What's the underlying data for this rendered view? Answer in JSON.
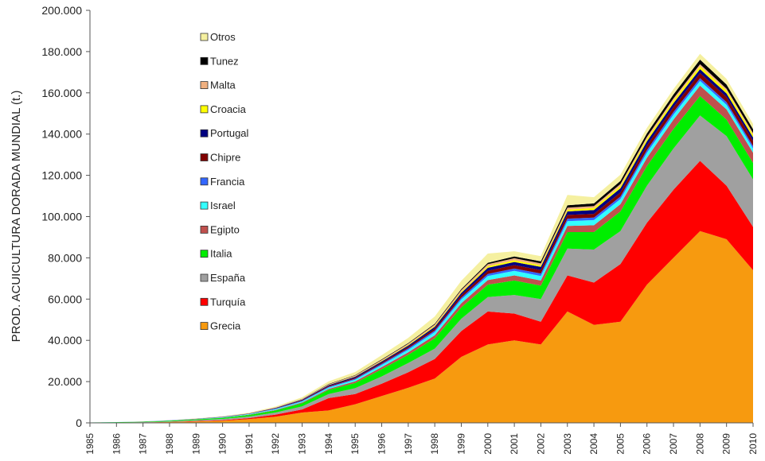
{
  "chart_data": {
    "type": "area",
    "stacked": true,
    "title": "",
    "xlabel": "",
    "ylabel": "PROD. ACUICULTURA DORADA MUNDIAL (t.)",
    "ylim": [
      0,
      200000
    ],
    "yticks": [
      "0",
      "20.000",
      "40.000",
      "60.000",
      "80.000",
      "100.000",
      "120.000",
      "140.000",
      "160.000",
      "180.000",
      "200.000"
    ],
    "grid": false,
    "legend_position": "top-left",
    "x": [
      "1985",
      "1986",
      "1987",
      "1988",
      "1989",
      "1990",
      "1991",
      "1992",
      "1993",
      "1994",
      "1995",
      "1996",
      "1997",
      "1998",
      "1999",
      "2000",
      "2001",
      "2002",
      "2003",
      "2004",
      "2005",
      "2006",
      "2007",
      "2008",
      "2009",
      "2010"
    ],
    "series": [
      {
        "name": "Grecia",
        "color": "#f79a0f",
        "values": [
          50,
          100,
          200,
          400,
          700,
          1000,
          1800,
          3000,
          5000,
          6000,
          9000,
          13000,
          17000,
          21500,
          32000,
          38000,
          40000,
          38000,
          54000,
          47500,
          49000,
          67000,
          80000,
          93000,
          89000,
          74000
        ]
      },
      {
        "name": "Turquía",
        "color": "#ff0000",
        "values": [
          0,
          0,
          0,
          100,
          200,
          300,
          500,
          1000,
          1500,
          6000,
          5000,
          6000,
          7500,
          9500,
          12500,
          16000,
          13000,
          11000,
          17500,
          20500,
          28000,
          30000,
          33000,
          34000,
          26000,
          21000
        ]
      },
      {
        "name": "España",
        "color": "#a0a0a0",
        "values": [
          50,
          100,
          150,
          200,
          400,
          600,
          800,
          1000,
          1500,
          2000,
          2800,
          3500,
          4500,
          5000,
          6000,
          7000,
          9000,
          11000,
          13000,
          16000,
          16000,
          18000,
          20000,
          22000,
          24000,
          23000
        ]
      },
      {
        "name": "Italia",
        "color": "#00ee00",
        "values": [
          100,
          150,
          200,
          300,
          400,
          500,
          700,
          1000,
          1500,
          2000,
          2500,
          3500,
          4000,
          5000,
          5500,
          6000,
          7000,
          6500,
          8000,
          8500,
          9500,
          9500,
          9500,
          9500,
          8000,
          8000
        ]
      },
      {
        "name": "Egipto",
        "color": "#c0504d",
        "values": [
          0,
          0,
          50,
          50,
          100,
          100,
          200,
          300,
          400,
          500,
          800,
          1000,
          1200,
          1500,
          2000,
          2200,
          2500,
          2500,
          3000,
          3300,
          3500,
          4000,
          4500,
          5000,
          5000,
          5000
        ]
      },
      {
        "name": "Israel",
        "color": "#33ffff",
        "values": [
          0,
          50,
          50,
          100,
          100,
          200,
          300,
          400,
          500,
          600,
          800,
          1000,
          1200,
          1500,
          1800,
          2000,
          2200,
          2200,
          2300,
          2500,
          2500,
          2500,
          2400,
          2300,
          2200,
          2000
        ]
      },
      {
        "name": "Francia",
        "color": "#3366ff",
        "values": [
          0,
          0,
          0,
          50,
          50,
          100,
          100,
          200,
          300,
          400,
          500,
          600,
          700,
          800,
          900,
          1000,
          1100,
          1200,
          1200,
          1200,
          1200,
          1300,
          1300,
          1300,
          1300,
          1200
        ]
      },
      {
        "name": "Chipre",
        "color": "#800000",
        "values": [
          0,
          0,
          0,
          0,
          50,
          100,
          100,
          200,
          300,
          400,
          500,
          600,
          700,
          900,
          1200,
          1500,
          1700,
          1700,
          1800,
          1800,
          2000,
          2200,
          2400,
          2500,
          2500,
          2500
        ]
      },
      {
        "name": "Portugal",
        "color": "#000080",
        "values": [
          0,
          0,
          0,
          50,
          50,
          100,
          100,
          200,
          300,
          400,
          500,
          600,
          700,
          900,
          1100,
          1500,
          1500,
          1500,
          1700,
          1900,
          2000,
          2000,
          1900,
          1900,
          1700,
          1700
        ]
      },
      {
        "name": "Croacia",
        "color": "#ffff00",
        "values": [
          0,
          0,
          0,
          0,
          0,
          0,
          0,
          0,
          50,
          100,
          150,
          200,
          300,
          400,
          500,
          700,
          800,
          800,
          900,
          1000,
          1100,
          1200,
          1300,
          1400,
          1400,
          1300
        ]
      },
      {
        "name": "Malta",
        "color": "#f0b080",
        "values": [
          0,
          0,
          0,
          0,
          0,
          0,
          50,
          100,
          200,
          300,
          400,
          500,
          600,
          700,
          900,
          1000,
          1000,
          900,
          900,
          900,
          1000,
          1000,
          1000,
          1000,
          900,
          800
        ]
      },
      {
        "name": "Tunez",
        "color": "#000000",
        "values": [
          0,
          0,
          0,
          0,
          0,
          0,
          0,
          50,
          100,
          200,
          200,
          300,
          300,
          400,
          500,
          700,
          900,
          1000,
          1200,
          1300,
          1500,
          1700,
          1900,
          2200,
          2000,
          1900
        ]
      },
      {
        "name": "Otros",
        "color": "#f5f0a0",
        "values": [
          0,
          0,
          0,
          50,
          100,
          200,
          300,
          500,
          800,
          1200,
          1500,
          2000,
          2500,
          3500,
          4000,
          4500,
          2500,
          2500,
          5000,
          3000,
          3000,
          2600,
          2600,
          2800,
          2800,
          2500
        ]
      }
    ]
  }
}
